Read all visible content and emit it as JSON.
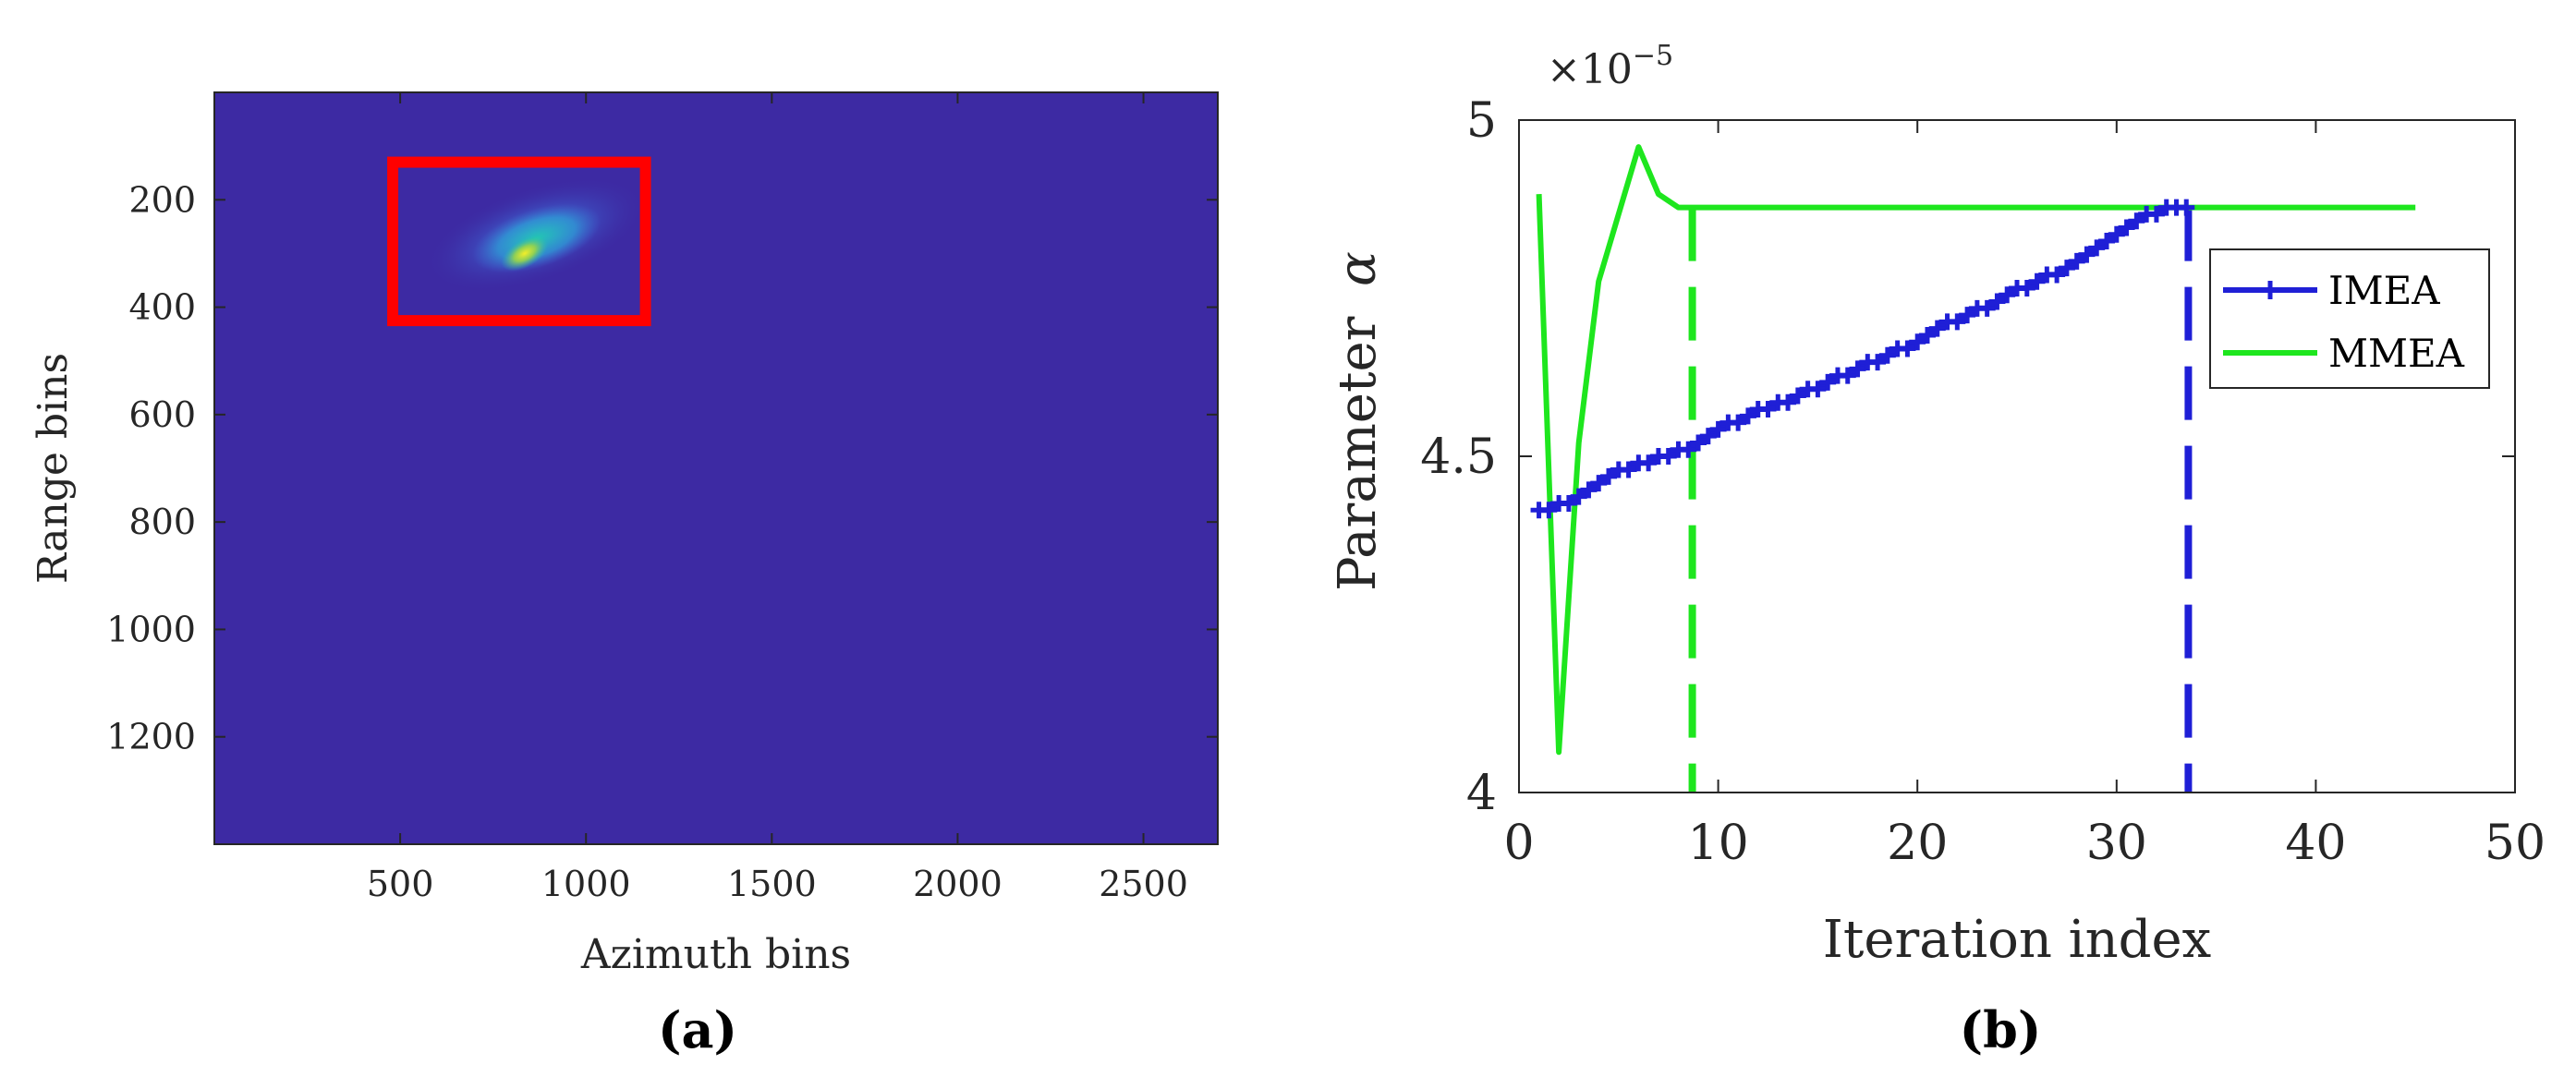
{
  "colors": {
    "image_background": "#3d2aa3",
    "box": "#ff0000",
    "imea": "#1f1fd6",
    "mmea": "#1ee61e",
    "axis": "#262626"
  },
  "chart_data": [
    {
      "type": "heatmap",
      "panel_label": "(a)",
      "xlabel": "Azimuth bins",
      "ylabel": "Range bins",
      "xlim": [
        0,
        2700
      ],
      "ylim": [
        1400,
        0
      ],
      "y_reversed": true,
      "x_ticks": [
        500,
        1000,
        1500,
        2000,
        2500
      ],
      "x_tick_labels": [
        "500",
        "1000",
        "1500",
        "2000",
        "2500"
      ],
      "y_ticks": [
        200,
        400,
        600,
        800,
        1000,
        1200
      ],
      "y_tick_labels": [
        "200",
        "400",
        "600",
        "800",
        "1000",
        "1200"
      ],
      "target": {
        "azimuth_center": 850,
        "range_center": 290,
        "azimuth_extent": [
          650,
          1150
        ],
        "range_extent": [
          200,
          360
        ]
      },
      "highlight_box": {
        "x": [
          480,
          1160
        ],
        "y": [
          130,
          425
        ],
        "color": "#ff0000"
      },
      "grid": false
    },
    {
      "type": "line",
      "panel_label": "(b)",
      "xlabel": "Iteration index",
      "ylabel": "Parameter",
      "ylabel_symbol": "α",
      "y_exponent_label": "×10",
      "y_exponent_power": "−5",
      "xlim": [
        0,
        50
      ],
      "ylim": [
        4.0,
        5.0
      ],
      "x_ticks": [
        0,
        10,
        20,
        30,
        40,
        50
      ],
      "x_tick_labels": [
        "0",
        "10",
        "20",
        "30",
        "40",
        "50"
      ],
      "y_ticks": [
        4.0,
        4.5,
        5.0
      ],
      "y_tick_labels": [
        "4",
        "4.5",
        "5"
      ],
      "grid": false,
      "legend_position": "upper-right",
      "series": [
        {
          "name": "IMEA",
          "color": "#1f1fd6",
          "marker": "plus",
          "x": [
            1,
            1.5,
            2,
            2.5,
            3,
            3.5,
            4,
            4.5,
            5,
            5.5,
            6,
            6.5,
            7,
            7.5,
            8,
            8.5,
            9,
            9.5,
            10,
            10.5,
            11,
            11.5,
            12,
            12.5,
            13,
            13.5,
            14,
            14.5,
            15,
            15.5,
            16,
            16.5,
            17,
            17.5,
            18,
            18.5,
            19,
            19.5,
            20,
            20.5,
            21,
            21.5,
            22,
            22.5,
            23,
            23.5,
            24,
            24.5,
            25,
            25.5,
            26,
            26.5,
            27,
            27.5,
            28,
            28.5,
            29,
            29.5,
            30,
            30.5,
            31,
            31.5,
            32,
            32.5,
            33,
            33.5
          ],
          "y": [
            4.42,
            4.42,
            4.43,
            4.43,
            4.44,
            4.45,
            4.46,
            4.47,
            4.48,
            4.48,
            4.49,
            4.49,
            4.5,
            4.5,
            4.51,
            4.51,
            4.52,
            4.53,
            4.54,
            4.55,
            4.55,
            4.56,
            4.57,
            4.57,
            4.58,
            4.58,
            4.59,
            4.6,
            4.6,
            4.61,
            4.62,
            4.62,
            4.63,
            4.64,
            4.64,
            4.65,
            4.66,
            4.66,
            4.67,
            4.68,
            4.69,
            4.7,
            4.7,
            4.71,
            4.72,
            4.72,
            4.73,
            4.74,
            4.75,
            4.75,
            4.76,
            4.77,
            4.77,
            4.78,
            4.79,
            4.8,
            4.81,
            4.82,
            4.83,
            4.84,
            4.85,
            4.86,
            4.86,
            4.87,
            4.87,
            4.87
          ]
        },
        {
          "name": "MMEA",
          "color": "#1ee61e",
          "marker": "none",
          "x": [
            1,
            2,
            3,
            4,
            5,
            6,
            7,
            8,
            9,
            10,
            15,
            20,
            25,
            30,
            35,
            40,
            45
          ],
          "y": [
            4.89,
            4.06,
            4.52,
            4.76,
            4.86,
            4.96,
            4.89,
            4.87,
            4.87,
            4.87,
            4.87,
            4.87,
            4.87,
            4.87,
            4.87,
            4.87,
            4.87
          ]
        }
      ],
      "vlines": [
        {
          "x": 8.7,
          "color": "#1ee61e",
          "style": "dashed"
        },
        {
          "x": 33.6,
          "color": "#1f1fd6",
          "style": "dashed"
        }
      ]
    }
  ]
}
